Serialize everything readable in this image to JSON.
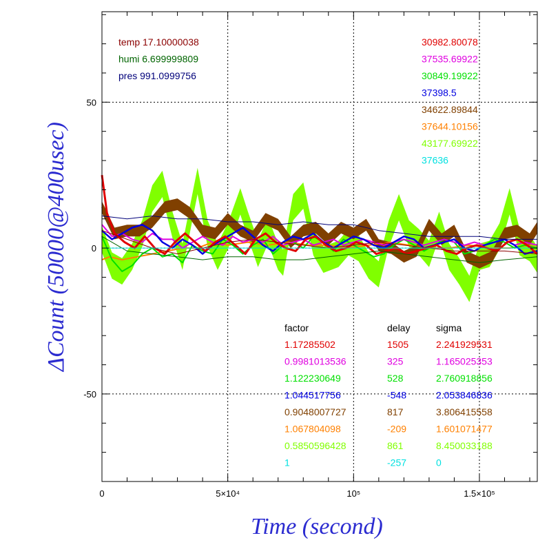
{
  "chart_data": {
    "type": "line",
    "xlabel": "Time (second)",
    "ylabel": "ΔCount (50000@400usec)",
    "xlim": [
      0,
      173000
    ],
    "ylim": [
      -80,
      81
    ],
    "grid": true,
    "x_ticks": [
      {
        "value": 0,
        "label": "0"
      },
      {
        "value": 50000,
        "label": "5×10⁴"
      },
      {
        "value": 100000,
        "label": "10⁵"
      },
      {
        "value": 150000,
        "label": "1.5×10⁵"
      }
    ],
    "y_ticks": [
      {
        "value": 50,
        "label": "50"
      },
      {
        "value": 0,
        "label": "0"
      },
      {
        "value": -50,
        "label": "-50"
      }
    ],
    "env_labels": [
      {
        "text": "temp 17.10000038",
        "color": "#8b0000"
      },
      {
        "text": "humi 6.699999809",
        "color": "#006400"
      },
      {
        "text": "pres 991.0999756",
        "color": "#00007a"
      }
    ],
    "right_values": [
      {
        "text": "30982.80078",
        "color": "#e00000"
      },
      {
        "text": "37535.69922",
        "color": "#e000e0"
      },
      {
        "text": "30849.19922",
        "color": "#00e000"
      },
      {
        "text": "37398.5",
        "color": "#0000e0"
      },
      {
        "text": "34622.89844",
        "color": "#804000"
      },
      {
        "text": "37644.10156",
        "color": "#ff8000"
      },
      {
        "text": "43177.69922",
        "color": "#80ff00"
      },
      {
        "text": "37636",
        "color": "#00e0e0"
      }
    ],
    "table": {
      "headers": [
        "factor",
        "delay",
        "sigma"
      ],
      "rows": [
        {
          "factor": "1.17285502",
          "delay": "1505",
          "sigma": "2.241929531",
          "color": "#e00000"
        },
        {
          "factor": "0.9981013536",
          "delay": "325",
          "sigma": "1.165025353",
          "color": "#e000e0"
        },
        {
          "factor": "1.122230649",
          "delay": "528",
          "sigma": "2.760918856",
          "color": "#00e000"
        },
        {
          "factor": "1.044517756",
          "delay": "-548",
          "sigma": "2.053846836",
          "color": "#0000e0"
        },
        {
          "factor": "0.9048007727",
          "delay": "817",
          "sigma": "3.806415558",
          "color": "#804000"
        },
        {
          "factor": "1.067804098",
          "delay": "-209",
          "sigma": "1.601071477",
          "color": "#ff8000"
        },
        {
          "factor": "0.5850596428",
          "delay": "861",
          "sigma": "8.450033188",
          "color": "#80ff00"
        },
        {
          "factor": "1",
          "delay": "-257",
          "sigma": "0",
          "color": "#00e0e0"
        }
      ]
    },
    "series": [
      {
        "color": "#80ff00",
        "band": 4.5,
        "width": 2,
        "x": [
          0,
          4000,
          8000,
          12000,
          16000,
          20000,
          24000,
          28000,
          32000,
          38000,
          42000,
          46000,
          50000,
          55000,
          58000,
          62000,
          66000,
          70000,
          72000,
          76000,
          80000,
          84000,
          88000,
          94000,
          98000,
          102000,
          106000,
          110000,
          114000,
          118000,
          122000,
          126000,
          130000,
          134000,
          138000,
          142000,
          146000,
          150000,
          154000,
          158000,
          162000,
          166000,
          170000,
          173000
        ],
        "y": [
          3,
          -6,
          -8,
          -3,
          5,
          17,
          22,
          8,
          -3,
          23,
          5,
          -3,
          4,
          16,
          8,
          -2,
          6,
          -3,
          -5,
          14,
          18,
          2,
          -4,
          -2,
          2,
          0,
          -6,
          -9,
          5,
          14,
          5,
          2,
          -2,
          8,
          -3,
          -8,
          -14,
          -3,
          -2,
          4,
          16,
          2,
          0,
          -4
        ]
      },
      {
        "color": "#804000",
        "band": 2,
        "width": 2,
        "x": [
          0,
          5000,
          10000,
          15000,
          20000,
          25000,
          30000,
          35000,
          40000,
          45000,
          50000,
          55000,
          60000,
          65000,
          70000,
          75000,
          80000,
          85000,
          90000,
          95000,
          100000,
          105000,
          110000,
          115000,
          120000,
          125000,
          130000,
          135000,
          140000,
          145000,
          150000,
          155000,
          160000,
          165000,
          170000,
          173000
        ],
        "y": [
          14,
          5,
          6,
          6,
          9,
          14,
          15,
          12,
          6,
          5,
          10,
          6,
          4,
          10,
          8,
          2,
          6,
          7,
          3,
          7,
          5,
          8,
          1,
          0,
          -3,
          -1,
          8,
          3,
          6,
          -3,
          -5,
          -3,
          5,
          6,
          3,
          7
        ]
      },
      {
        "color": "#ff8000",
        "band": 0,
        "width": 2,
        "x": [
          0,
          3000,
          8000,
          14000,
          20000,
          26000,
          32000,
          38000,
          44000,
          50000,
          58000,
          66000,
          74000,
          82000,
          90000,
          98000,
          106000,
          114000,
          122000,
          130000,
          138000,
          146000,
          154000,
          162000,
          170000,
          173000
        ],
        "y": [
          -4,
          -3,
          -4,
          -3,
          -2,
          -1,
          0,
          0,
          2,
          1,
          2,
          1,
          2,
          1,
          1,
          0,
          1,
          2,
          1,
          0,
          0,
          1,
          0,
          0,
          1,
          0
        ]
      },
      {
        "color": "#00e000",
        "band": 0,
        "width": 2,
        "x": [
          0,
          4000,
          8000,
          12000,
          16000,
          20000,
          24000,
          28000,
          32000,
          36000,
          40000,
          44000,
          48000,
          52000,
          56000,
          60000,
          64000,
          68000,
          72000,
          76000,
          80000,
          84000,
          88000,
          92000,
          96000,
          100000,
          104000,
          108000,
          112000,
          116000,
          120000,
          124000,
          128000,
          132000,
          136000,
          140000,
          144000,
          148000,
          152000,
          156000,
          160000,
          164000,
          168000,
          173000
        ],
        "y": [
          4,
          -4,
          -8,
          -6,
          -2,
          0,
          -3,
          -2,
          -5,
          1,
          -1,
          -2,
          3,
          1,
          -2,
          1,
          3,
          -2,
          1,
          2,
          0,
          4,
          2,
          -1,
          3,
          1,
          -1,
          -3,
          -2,
          1,
          3,
          1,
          -1,
          1,
          3,
          2,
          -2,
          -1,
          1,
          3,
          2,
          0,
          1,
          0
        ]
      },
      {
        "color": "#e000e0",
        "band": 0,
        "width": 2,
        "x": [
          0,
          4000,
          8000,
          12000,
          16000,
          20000,
          24000,
          28000,
          32000,
          36000,
          40000,
          44000,
          48000,
          52000,
          56000,
          60000,
          64000,
          68000,
          72000,
          76000,
          80000,
          84000,
          88000,
          92000,
          96000,
          100000,
          104000,
          108000,
          112000,
          116000,
          120000,
          124000,
          128000,
          132000,
          136000,
          140000,
          144000,
          148000,
          152000,
          156000,
          160000,
          164000,
          168000,
          173000
        ],
        "y": [
          8,
          4,
          5,
          3,
          2,
          5,
          3,
          3,
          0,
          2,
          4,
          2,
          1,
          4,
          2,
          3,
          2,
          4,
          1,
          2,
          3,
          1,
          2,
          3,
          1,
          2,
          3,
          2,
          1,
          2,
          3,
          2,
          1,
          2,
          3,
          2,
          1,
          2,
          1,
          2,
          3,
          1,
          2,
          1
        ]
      },
      {
        "color": "#0000e0",
        "band": 0,
        "width": 2.5,
        "x": [
          0,
          4000,
          8000,
          12000,
          16000,
          20000,
          24000,
          28000,
          32000,
          36000,
          40000,
          44000,
          48000,
          52000,
          56000,
          60000,
          64000,
          68000,
          72000,
          76000,
          80000,
          84000,
          88000,
          92000,
          96000,
          100000,
          104000,
          108000,
          112000,
          116000,
          120000,
          124000,
          128000,
          132000,
          136000,
          140000,
          144000,
          148000,
          152000,
          156000,
          160000,
          164000,
          168000,
          173000
        ],
        "y": [
          6,
          3,
          5,
          7,
          8,
          6,
          2,
          0,
          3,
          1,
          -2,
          1,
          3,
          5,
          7,
          4,
          1,
          -1,
          2,
          4,
          3,
          5,
          2,
          0,
          2,
          4,
          3,
          1,
          0,
          2,
          4,
          3,
          0,
          1,
          2,
          3,
          0,
          -1,
          1,
          2,
          3,
          1,
          -2,
          -1
        ]
      },
      {
        "color": "#e00000",
        "band": 0,
        "width": 3,
        "x": [
          0,
          2000,
          5000,
          9000,
          13000,
          17000,
          21000,
          25000,
          29000,
          33000,
          37000,
          41000,
          45000,
          49000,
          53000,
          57000,
          61000,
          65000,
          69000,
          73000,
          77000,
          81000,
          85000,
          89000,
          93000,
          97000,
          101000,
          105000,
          109000,
          113000,
          117000,
          121000,
          125000,
          129000,
          133000,
          137000,
          141000,
          145000,
          149000,
          153000,
          157000,
          161000,
          165000,
          169000,
          173000
        ],
        "y": [
          25,
          12,
          5,
          2,
          0,
          4,
          0,
          -2,
          2,
          5,
          2,
          -1,
          2,
          4,
          1,
          -2,
          3,
          5,
          2,
          0,
          -1,
          3,
          4,
          1,
          -1,
          0,
          2,
          1,
          -2,
          -1,
          0,
          -2,
          -1,
          0,
          1,
          -1,
          -2,
          0,
          1,
          0,
          -1,
          2,
          3,
          1,
          -2
        ]
      },
      {
        "color": "#00007a",
        "band": 0,
        "width": 1,
        "x": [
          0,
          10000,
          20000,
          30000,
          40000,
          50000,
          60000,
          70000,
          80000,
          90000,
          100000,
          110000,
          120000,
          130000,
          140000,
          150000,
          160000,
          173000
        ],
        "y": [
          11,
          10,
          11,
          10,
          10,
          9,
          9,
          8,
          9,
          8,
          8,
          6,
          5,
          4,
          4,
          4,
          3,
          3
        ]
      },
      {
        "color": "#006400",
        "band": 0,
        "width": 1,
        "x": [
          0,
          10000,
          20000,
          30000,
          40000,
          50000,
          60000,
          70000,
          80000,
          90000,
          100000,
          110000,
          120000,
          130000,
          140000,
          150000,
          160000,
          173000
        ],
        "y": [
          4,
          -1,
          -2,
          -3,
          -4,
          -3,
          -3,
          -4,
          -4,
          -3,
          -2,
          -1,
          -2,
          -3,
          -4,
          -5,
          -4,
          -3
        ]
      },
      {
        "color": "#8b0000",
        "band": 0,
        "width": 1,
        "x": [
          0,
          10000,
          20000,
          30000,
          40000,
          50000,
          60000,
          70000,
          80000,
          90000,
          100000,
          110000,
          120000,
          130000,
          140000,
          150000,
          160000,
          173000
        ],
        "y": [
          6,
          3,
          0,
          -2,
          0,
          2,
          3,
          2,
          1,
          0,
          1,
          2,
          1,
          0,
          -1,
          -1,
          -1,
          -2
        ]
      },
      {
        "color": "#00e0e0",
        "band": 0,
        "width": 1,
        "x": [
          0,
          20000,
          40000,
          60000,
          80000,
          100000,
          120000,
          140000,
          160000,
          173000
        ],
        "y": [
          0,
          0,
          0,
          0,
          0,
          0,
          0,
          0,
          0,
          0
        ]
      }
    ]
  }
}
